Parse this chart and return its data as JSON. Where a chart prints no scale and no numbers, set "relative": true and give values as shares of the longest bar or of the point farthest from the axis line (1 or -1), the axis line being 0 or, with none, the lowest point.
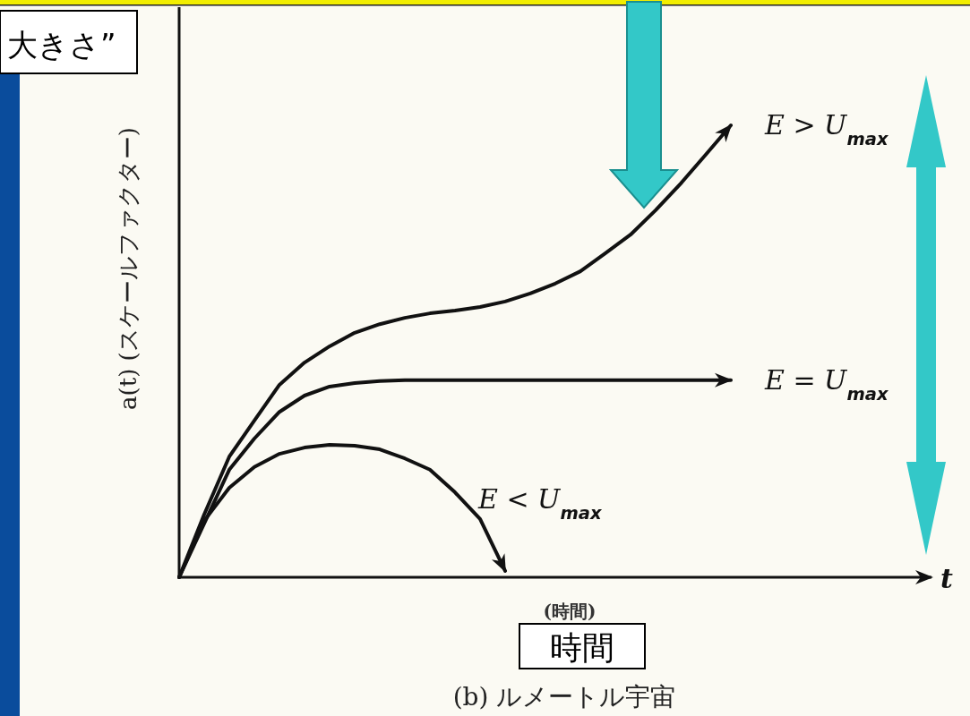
{
  "chart_data": {
    "type": "line",
    "relative": true,
    "title": "(b) ルメートル宇宙",
    "xlabel": "t",
    "ylabel": "a(t) (スケールファクター)",
    "annotations": [
      "(時間)",
      "時間",
      "大きさ”"
    ],
    "marker": "none",
    "line_style": "solid",
    "categories": [
      null,
      null,
      null,
      null,
      null,
      null,
      null,
      null,
      null,
      null,
      null,
      null,
      null,
      null,
      null,
      null,
      null,
      null,
      null,
      null,
      null,
      null,
      null,
      null,
      null,
      null,
      null,
      null,
      null,
      null,
      null
    ],
    "series": [
      {
        "name": "E > U$_{max}$",
        "color": "#111111",
        "values": [
          0,
          0.139,
          0.267,
          0.347,
          0.426,
          0.475,
          0.511,
          0.541,
          0.56,
          0.574,
          0.584,
          0.59,
          0.598,
          0.61,
          0.628,
          0.65,
          0.677,
          0.717,
          0.758,
          0.812,
          0.871,
          0.935,
          1,
          null,
          null,
          null,
          null,
          null,
          null,
          null,
          null
        ]
      },
      {
        "name": "E = U$_{max}$",
        "color": "#111111",
        "values": [
          0,
          0.119,
          0.238,
          0.307,
          0.366,
          0.402,
          0.422,
          0.43,
          0.434,
          0.436,
          0.436,
          0.436,
          0.436,
          0.436,
          0.436,
          0.436,
          0.436,
          0.436,
          0.436,
          0.436,
          0.436,
          0.436,
          0.436,
          null,
          null,
          null,
          null,
          null,
          null,
          null,
          null
        ]
      },
      {
        "name": "E < U$_{max}$",
        "color": "#111111",
        "values": [
          0,
          0.125,
          0.198,
          0.244,
          0.273,
          0.287,
          0.293,
          0.291,
          0.283,
          0.263,
          0.238,
          0.188,
          0.129,
          0.014,
          null,
          null,
          null,
          null,
          null,
          null,
          null,
          null,
          null,
          null,
          null,
          null,
          null,
          null,
          null,
          null,
          null
        ]
      }
    ]
  }
}
